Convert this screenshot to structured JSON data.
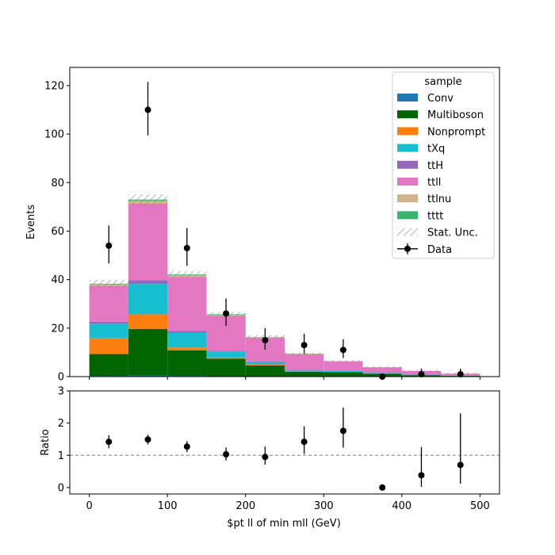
{
  "chart_data": [
    {
      "type": "bar",
      "stacked": true,
      "x_edges": [
        0,
        50,
        100,
        150,
        200,
        250,
        300,
        350,
        400,
        450,
        500
      ],
      "xlim": [
        -25,
        525
      ],
      "ylim": [
        0,
        127.5
      ],
      "xticks": [
        0,
        100,
        200,
        300,
        400,
        500
      ],
      "yticks": [
        0,
        20,
        40,
        60,
        80,
        100,
        120
      ],
      "xlabel": "",
      "ylabel": "Events",
      "grid": false,
      "legend": {
        "title": "sample",
        "position": "top-right"
      },
      "series": [
        {
          "name": "Conv",
          "color": "#1f77b4",
          "values": [
            0.3,
            0.4,
            0.3,
            0.1,
            0.1,
            0.05,
            0.0,
            0.0,
            0.0,
            0.0
          ]
        },
        {
          "name": "Multiboson",
          "color": "#006400",
          "values": [
            9.0,
            19.3,
            10.5,
            7.3,
            4.5,
            1.9,
            1.9,
            1.2,
            0.6,
            0.3
          ]
        },
        {
          "name": "Nonprompt",
          "color": "#ff7f0e",
          "values": [
            6.5,
            6.0,
            1.2,
            0.5,
            0.3,
            0.1,
            0.0,
            0.0,
            0.0,
            0.0
          ]
        },
        {
          "name": "tXq",
          "color": "#17becf",
          "values": [
            6.0,
            12.5,
            6.0,
            2.5,
            1.1,
            0.6,
            0.4,
            0.3,
            0.2,
            0.1
          ]
        },
        {
          "name": "ttH",
          "color": "#9467bd",
          "values": [
            0.8,
            1.6,
            0.9,
            0.3,
            0.3,
            0.2,
            0.1,
            0.0,
            0.0,
            0.0
          ]
        },
        {
          "name": "ttll",
          "color": "#e377c2",
          "values": [
            14.8,
            31.5,
            22.2,
            14.3,
            9.6,
            6.3,
            3.8,
            2.2,
            1.5,
            0.8
          ]
        },
        {
          "name": "ttlnu",
          "color": "#d2b48c",
          "values": [
            0.7,
            1.3,
            0.7,
            0.5,
            0.3,
            0.2,
            0.1,
            0.1,
            0.1,
            0.1
          ]
        },
        {
          "name": "tttt",
          "color": "#3cb371",
          "values": [
            0.2,
            0.4,
            0.3,
            0.2,
            0.1,
            0.1,
            0.1,
            0.1,
            0.0,
            0.0
          ]
        }
      ],
      "stat_unc": {
        "name": "Stat. Unc.",
        "values": [
          1.6,
          2.2,
          1.5,
          1.0,
          0.8,
          0.5,
          0.4,
          0.4,
          0.3,
          0.3
        ]
      },
      "data": {
        "name": "Data",
        "color": "#000000",
        "x": [
          25,
          75,
          125,
          175,
          225,
          275,
          325,
          375,
          425,
          475
        ],
        "y": [
          54,
          110,
          53,
          26,
          15,
          13,
          11,
          0,
          1,
          1
        ],
        "yerr_low": [
          7.3,
          10.5,
          7.3,
          5.1,
          3.9,
          3.6,
          3.3,
          0,
          1.0,
          1.0
        ],
        "yerr_high": [
          8.3,
          11.5,
          8.3,
          6.2,
          5.0,
          4.7,
          4.4,
          0,
          2.3,
          2.3
        ]
      }
    },
    {
      "type": "scatter",
      "xlim": [
        -25,
        525
      ],
      "ylim": [
        -0.2,
        3
      ],
      "xticks": [
        0,
        100,
        200,
        300,
        400,
        500
      ],
      "yticks": [
        0,
        1,
        2,
        3
      ],
      "xlabel": "$pt ll of min mll (GeV)",
      "ylabel": "Ratio",
      "grid": false,
      "reference_line": 1,
      "x": [
        25,
        75,
        125,
        175,
        225,
        275,
        325,
        375,
        425,
        475
      ],
      "y": [
        1.42,
        1.49,
        1.27,
        1.03,
        0.95,
        1.42,
        1.76,
        0.0,
        0.38,
        0.7
      ],
      "yerr_low": [
        0.2,
        0.15,
        0.17,
        0.19,
        0.24,
        0.38,
        0.52,
        0.0,
        0.36,
        0.58
      ],
      "yerr_high": [
        0.2,
        0.15,
        0.17,
        0.21,
        0.32,
        0.48,
        0.72,
        0.0,
        0.88,
        1.6
      ]
    }
  ]
}
